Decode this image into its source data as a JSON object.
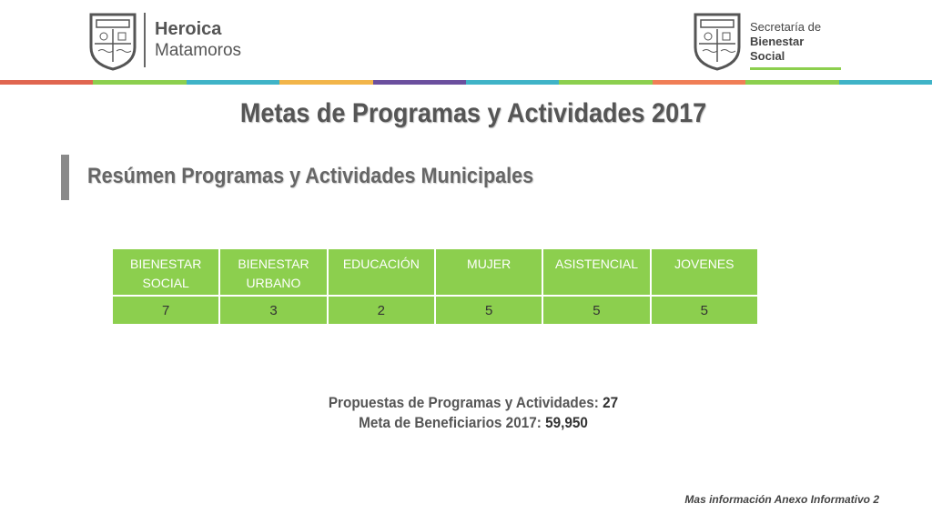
{
  "header": {
    "left_logo": {
      "line1": "Heroica",
      "line2": "Matamoros"
    },
    "right_logo": {
      "line1": "Secretaría de",
      "line2": "Bienestar Social"
    },
    "color_bar": [
      "#e06650",
      "#8ccf4e",
      "#3fb3c7",
      "#f2b54a",
      "#6b4f9e",
      "#3fb3c7",
      "#8ccf4e",
      "#f07e56",
      "#8ccf4e",
      "#3fb3c7"
    ]
  },
  "title": "Metas de Programas y Actividades 2017",
  "subtitle": "Resúmen Programas y Actividades Municipales",
  "table": {
    "headers": [
      "BIENESTAR SOCIAL",
      "BIENESTAR URBANO",
      "EDUCACIÓN",
      "MUJER",
      "ASISTENCIAL",
      "JOVENES"
    ],
    "values": [
      "7",
      "3",
      "2",
      "5",
      "5",
      "5"
    ]
  },
  "summary": {
    "proposals_label": "Propuestas de Programas y Actividades:",
    "proposals_value": "27",
    "beneficiaries_label": "Meta de Beneficiarios 2017:",
    "beneficiaries_value": "59,950"
  },
  "footer": "Mas información Anexo Informativo 2"
}
